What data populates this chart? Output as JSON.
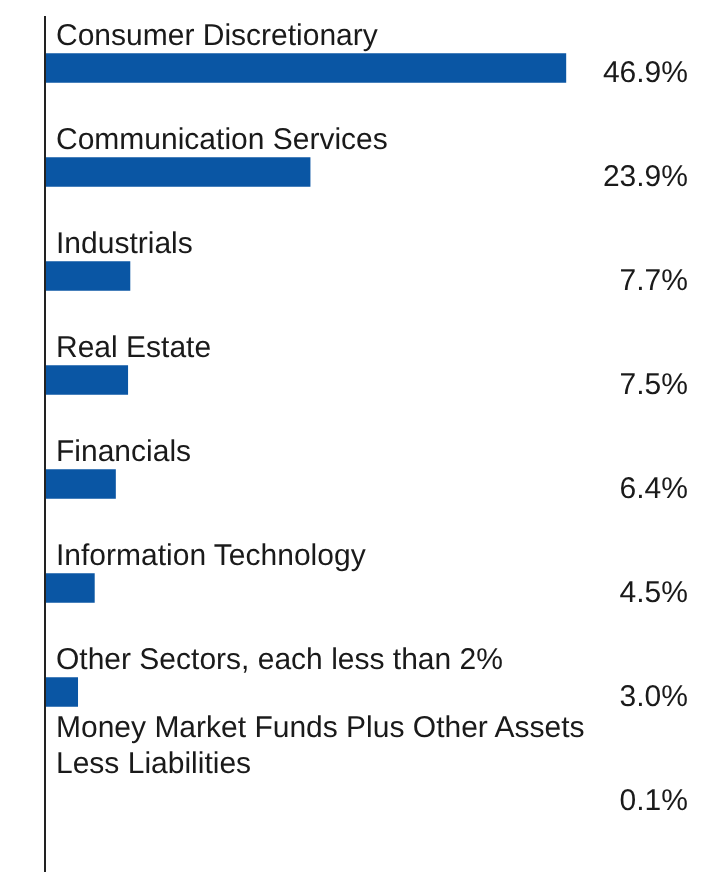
{
  "chart_data": {
    "type": "bar",
    "orientation": "horizontal",
    "categories": [
      "Consumer Discretionary",
      "Communication Services",
      "Industrials",
      "Real Estate",
      "Financials",
      "Information Technology",
      "Other Sectors, each less than 2%",
      "Money Market Funds Plus Other Assets Less Liabilities"
    ],
    "values": [
      46.9,
      23.9,
      7.7,
      7.5,
      6.4,
      4.5,
      3.0,
      0.1
    ],
    "value_labels": [
      "46.9%",
      "23.9%",
      "7.7%",
      "7.5%",
      "6.4%",
      "4.5%",
      "3.0%",
      "0.1%"
    ],
    "color": "#0a56a4",
    "legend": false
  }
}
